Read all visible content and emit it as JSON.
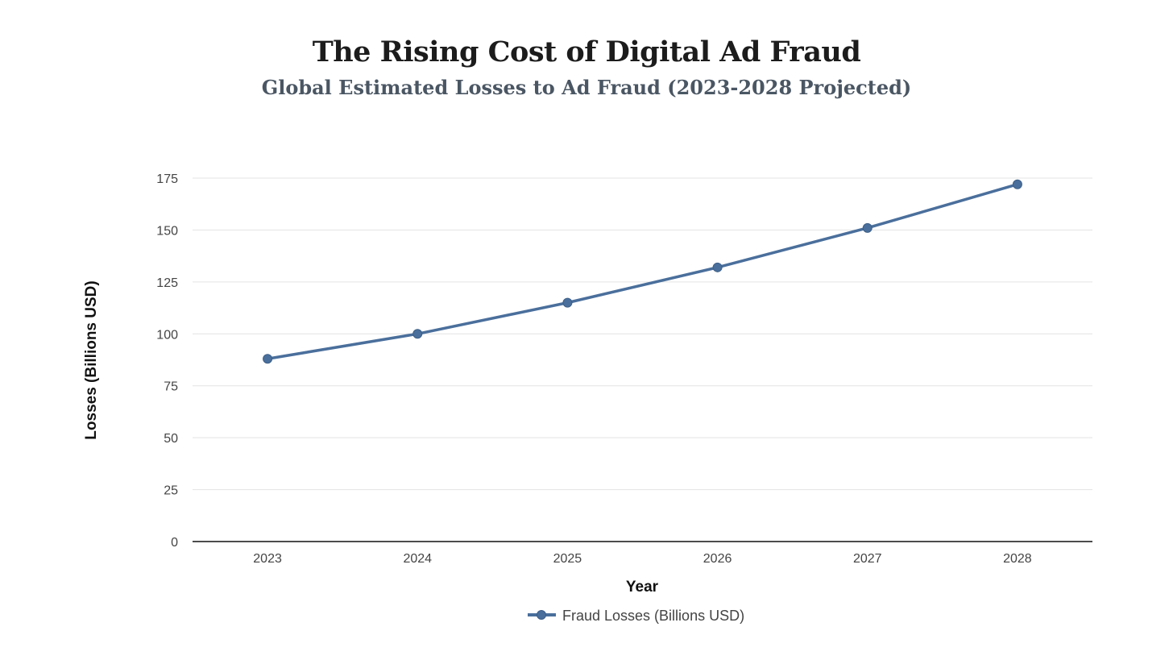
{
  "chart_data": {
    "type": "line",
    "title": "The Rising Cost of Digital Ad Fraud",
    "subtitle": "Global Estimated Losses to Ad Fraud (2023-2028 Projected)",
    "xlabel": "Year",
    "ylabel": "Losses (Billions USD)",
    "categories": [
      "2023",
      "2024",
      "2025",
      "2026",
      "2027",
      "2028"
    ],
    "series": [
      {
        "name": "Fraud Losses (Billions USD)",
        "values": [
          88,
          100,
          115,
          132,
          151,
          172
        ],
        "color": "#4a6f9c"
      }
    ],
    "ylim": [
      0,
      175
    ],
    "yticks": [
      "0",
      "25",
      "50",
      "75",
      "100",
      "125",
      "150",
      "175"
    ],
    "grid": true,
    "legend_position": "bottom-center"
  }
}
